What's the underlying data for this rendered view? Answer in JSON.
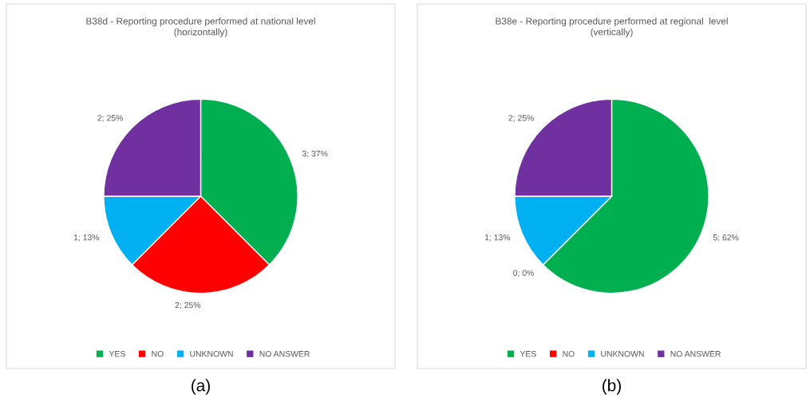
{
  "chart_data": [
    {
      "type": "pie",
      "title": "B38d - Reporting procedure performed at national level\n(horizontally)",
      "categories": [
        "YES",
        "NO",
        "UNKNOWN",
        "NO ANSWER"
      ],
      "values": [
        3,
        2,
        1,
        2
      ],
      "colors": [
        "#00b050",
        "#ff0000",
        "#00b0f0",
        "#7030a0"
      ],
      "value_labels": [
        "3; 37%",
        "2; 25%",
        "1; 13%",
        "2; 25%"
      ],
      "legend": "bottom",
      "annotations": [
        "(a)"
      ]
    },
    {
      "type": "pie",
      "title": "B38e - Reporting procedure performed at regional  level\n(vertically)",
      "categories": [
        "YES",
        "NO",
        "UNKNOWN",
        "NO ANSWER"
      ],
      "values": [
        5,
        0,
        1,
        2
      ],
      "colors": [
        "#00b050",
        "#ff0000",
        "#00b0f0",
        "#7030a0"
      ],
      "value_labels": [
        "5; 62%",
        "0; 0%",
        "1; 13%",
        "2; 25%"
      ],
      "legend": "bottom",
      "annotations": [
        "(b)"
      ]
    }
  ]
}
